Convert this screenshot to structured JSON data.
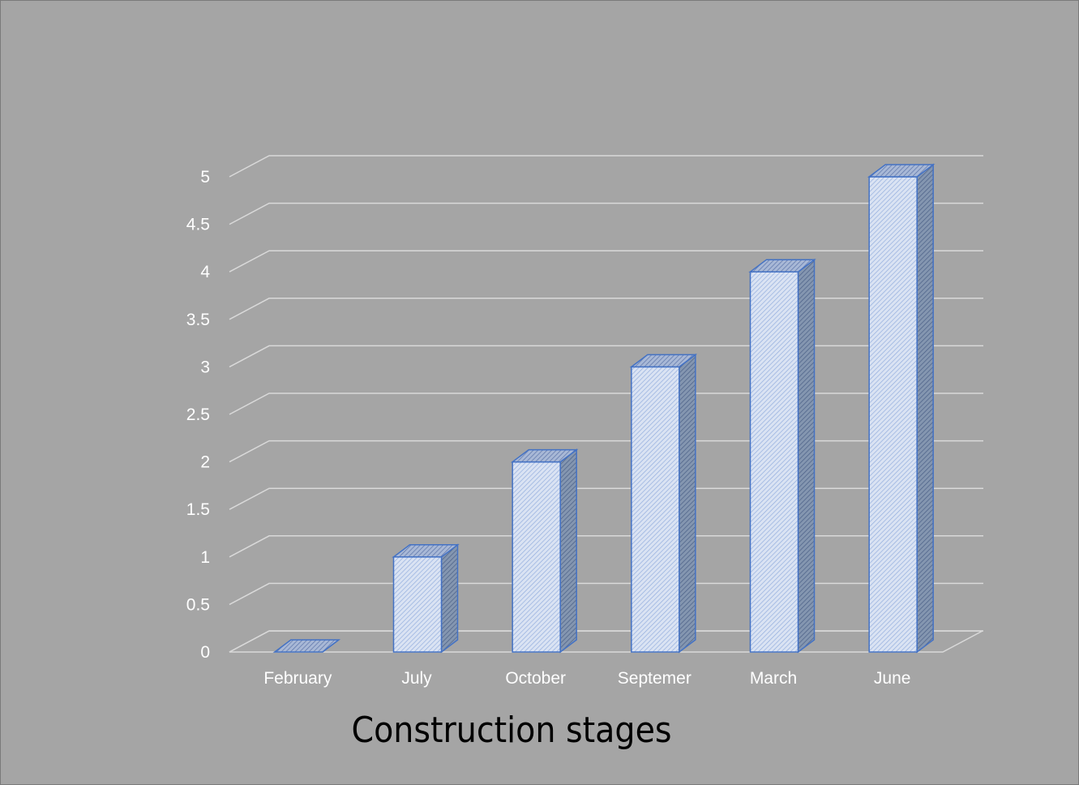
{
  "chart_data": {
    "type": "bar",
    "style": "3d-column",
    "title": "Construction stages",
    "xlabel": "Construction stages",
    "ylabel": "",
    "categories": [
      "February",
      "July",
      "October",
      "Septemer",
      "March",
      "June"
    ],
    "values": [
      0,
      1,
      2,
      3,
      4,
      5
    ],
    "ylim": [
      0,
      5
    ],
    "yticks": [
      "0",
      "0.5",
      "1",
      "1.5",
      "2",
      "2.5",
      "3",
      "3.5",
      "4",
      "4.5",
      "5"
    ],
    "grid": true,
    "legend": "none",
    "colors": {
      "background": "#a5a5a5",
      "bar_fill": "#dae3f3",
      "bar_outline": "#4472c4",
      "grid": "#d9d9d9",
      "tick_text": "#ffffff",
      "title_text": "#000000"
    }
  }
}
